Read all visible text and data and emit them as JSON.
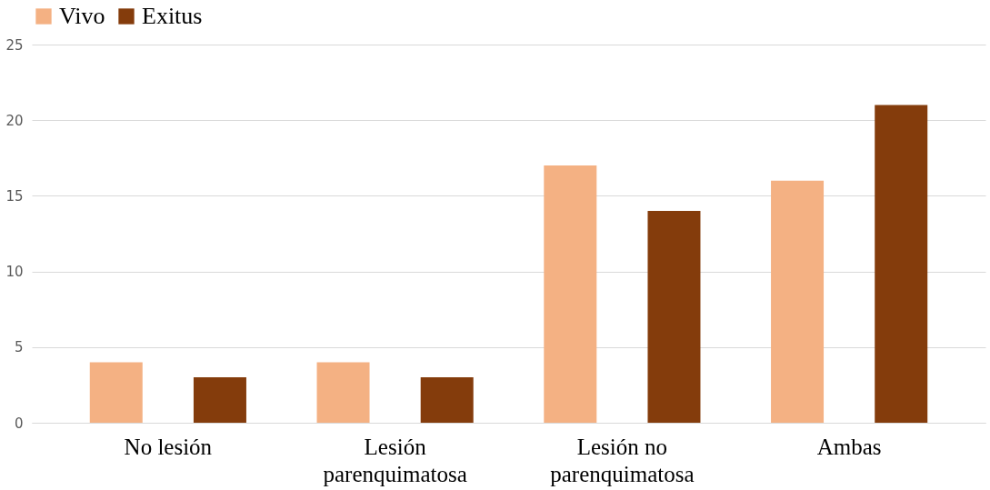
{
  "chart_data": {
    "type": "bar",
    "categories": [
      "No lesión",
      "Lesión parenquimatosa",
      "Lesión no parenquimatosa",
      "Ambas"
    ],
    "series": [
      {
        "name": "Vivo",
        "color": "#f4b183",
        "values": [
          4,
          4,
          17,
          16
        ]
      },
      {
        "name": "Exitus",
        "color": "#843c0c",
        "values": [
          3,
          3,
          14,
          21
        ]
      }
    ],
    "ylim": [
      0,
      25
    ],
    "yticks": [
      0,
      5,
      10,
      15,
      20,
      25
    ],
    "grid": "y",
    "legend": "top"
  }
}
